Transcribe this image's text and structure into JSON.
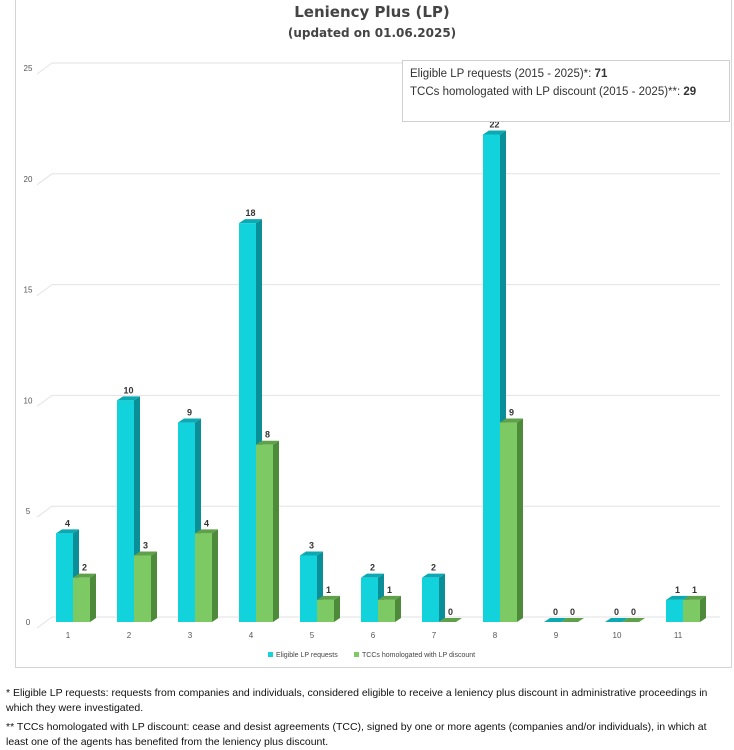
{
  "chart_data": {
    "type": "bar",
    "title": "Leniency Plus (LP)",
    "subtitle": "(updated  on 01.06.2025)",
    "xlabel": "",
    "ylabel": "",
    "ylim": [
      0,
      25
    ],
    "yticks": [
      0,
      5,
      10,
      15,
      20,
      25
    ],
    "categories": [
      "1",
      "2",
      "3",
      "4",
      "5",
      "6",
      "7",
      "8",
      "9",
      "10",
      "11"
    ],
    "series": [
      {
        "name": "Eligible LP requests",
        "color": "#12d2dc",
        "values": [
          4,
          10,
          9,
          18,
          3,
          2,
          2,
          22,
          0,
          0,
          1
        ]
      },
      {
        "name": "TCCs homologated with LP discount",
        "color": "#7dc964",
        "values": [
          2,
          3,
          4,
          8,
          1,
          1,
          0,
          9,
          0,
          0,
          1
        ]
      }
    ],
    "grid": true,
    "legend_position": "bottom",
    "three_d": true
  },
  "summary": {
    "line1_label": "Eligible LP requests (2015 - 2025)*: ",
    "line1_value": "71",
    "line2_label": "TCCs homologated with LP discount (2015 - 2025)**: ",
    "line2_value": "29"
  },
  "footnotes": {
    "note1": "* Eligible LP requests: requests from companies and individuals, considered eligible to receive a leniency plus discount in administrative proceedings in which they were investigated.",
    "note2": "** TCCs homologated with LP discount: cease and desist agreements (TCC), signed by one or more agents (companies and/or individuals), in which at least one of the agents has benefited from the leniency plus discount."
  }
}
